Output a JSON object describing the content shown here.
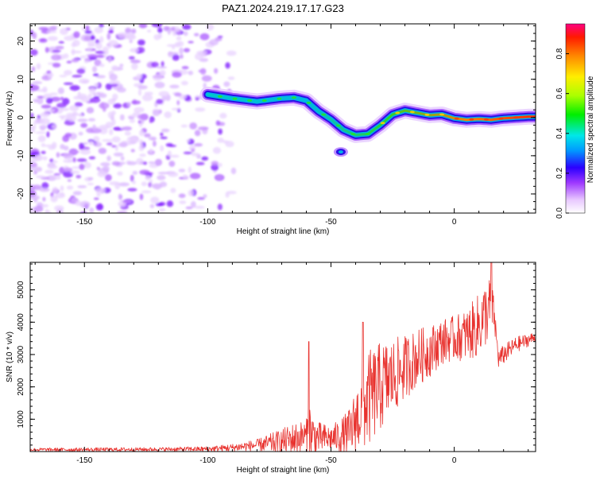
{
  "title": "PAZ1.2024.219.17.17.G23",
  "chart_data": [
    {
      "type": "heatmap",
      "xlabel": "Height of straight line (km)",
      "ylabel": "Frequency (Hz)",
      "xlim": [
        -172,
        33
      ],
      "ylim": [
        -25,
        24.5
      ],
      "xticks": [
        -150,
        -100,
        -50,
        0
      ],
      "yticks": [
        -20,
        -10,
        0,
        10,
        20
      ],
      "grid": false,
      "ridge": {
        "x": [
          -100,
          -95,
          -90,
          -85,
          -80,
          -75,
          -70,
          -65,
          -60,
          -55,
          -50,
          -45,
          -40,
          -35,
          -30,
          -25,
          -20,
          -15,
          -10,
          -5,
          0,
          5,
          10,
          15,
          20,
          25,
          30,
          33
        ],
        "frequency": [
          6.0,
          5.5,
          5.0,
          4.6,
          4.2,
          4.6,
          5.0,
          5.2,
          4.4,
          1.6,
          -0.5,
          -3.2,
          -4.6,
          -4.3,
          -2.0,
          0.8,
          1.8,
          1.2,
          0.6,
          0.8,
          -0.2,
          -0.6,
          -0.4,
          -0.6,
          -0.2,
          0.0,
          0.2,
          0.2
        ]
      },
      "blob": {
        "x": -46,
        "frequency": -9
      },
      "colorbar": {
        "label": "Normalized spectral amplitude",
        "range": [
          0.0,
          0.95
        ],
        "ticks": [
          "0.0",
          "0.2",
          "0.4",
          "0.6",
          "0.8"
        ]
      }
    },
    {
      "type": "line",
      "xlabel": "Height of straight line (km)",
      "ylabel": "SNR (10 * v/v)",
      "xlim": [
        -172,
        33
      ],
      "ylim": [
        0,
        5850
      ],
      "xticks": [
        -150,
        -100,
        -50,
        0
      ],
      "yticks": [
        1000,
        2000,
        3000,
        4000,
        5000
      ],
      "series": [
        {
          "color": "#e8322e",
          "envelope_x": [
            -172,
            -150,
            -120,
            -100,
            -90,
            -80,
            -70,
            -65,
            -60,
            -59,
            -57,
            -55,
            -50,
            -45,
            -42,
            -40,
            -37,
            -35,
            -30,
            -25,
            -20,
            -15,
            -10,
            -5,
            0,
            5,
            10,
            14,
            15,
            16,
            18,
            20,
            25,
            30,
            33
          ],
          "envelope_base": [
            60,
            60,
            70,
            80,
            120,
            200,
            300,
            400,
            480,
            500,
            450,
            420,
            400,
            500,
            600,
            1000,
            1300,
            1600,
            2000,
            2300,
            2600,
            2900,
            3100,
            3400,
            3500,
            3600,
            3900,
            4400,
            4500,
            4300,
            2850,
            3000,
            3300,
            3450,
            3550
          ],
          "envelope_amp": [
            50,
            60,
            60,
            80,
            120,
            180,
            400,
            500,
            500,
            1200,
            700,
            500,
            400,
            600,
            800,
            1000,
            1300,
            1500,
            1400,
            1200,
            1000,
            900,
            800,
            700,
            700,
            800,
            1000,
            1000,
            900,
            500,
            300,
            300,
            250,
            200,
            150
          ],
          "spikes": [
            {
              "x": -59,
              "y": 3400
            },
            {
              "x": 15,
              "y": 5850
            },
            {
              "x": -37,
              "y": 4000
            }
          ]
        }
      ]
    }
  ]
}
